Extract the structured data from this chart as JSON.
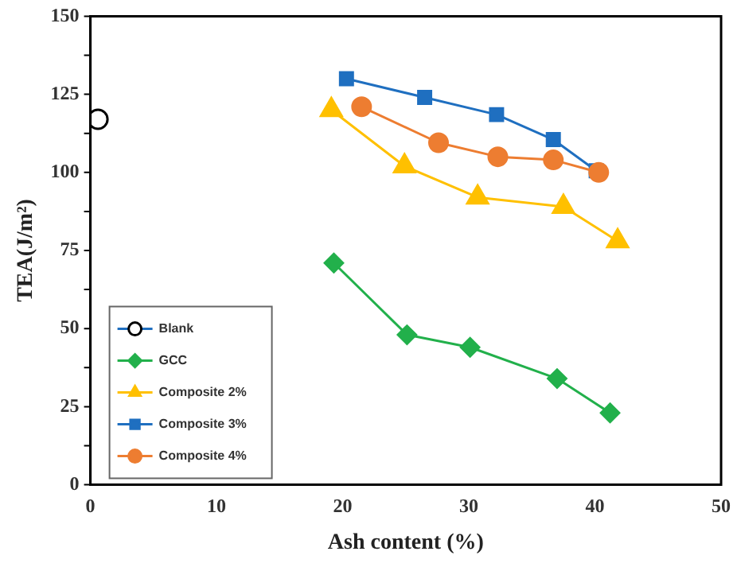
{
  "chart_data": {
    "type": "line",
    "xlabel": "Ash content (%)",
    "ylabel": "TEA(J/m²)",
    "xlim": [
      0,
      50
    ],
    "xticks": [
      0,
      10,
      20,
      30,
      40,
      50
    ],
    "ylim": [
      0,
      150
    ],
    "yticks": [
      0,
      {
        "value": 12.5,
        "label": null
      },
      25,
      {
        "value": 37.5,
        "label": null
      },
      50,
      {
        "value": 62.5,
        "label": null
      },
      75,
      {
        "value": 87.5,
        "label": null
      },
      100,
      {
        "value": 112.5,
        "label": null
      },
      125,
      {
        "value": 137.5,
        "label": null
      },
      150
    ],
    "grid": false,
    "legend": "bottom left",
    "line_style": "solid",
    "series": [
      {
        "name": "Blank",
        "color": "#000000",
        "marker": "circle",
        "x": [
          0.6
        ],
        "values": [
          117
        ]
      },
      {
        "name": "GCC",
        "color": "#22b04b",
        "marker": "diamond",
        "x": [
          19.3,
          25.1,
          30.1,
          37.0,
          41.2
        ],
        "values": [
          71,
          48,
          44,
          34,
          23
        ]
      },
      {
        "name": "Composite 2%",
        "color": "#ffc000",
        "marker": "triangle",
        "x": [
          19.1,
          24.9,
          30.7,
          37.5,
          41.8
        ],
        "values": [
          120,
          102,
          92,
          89,
          78
        ]
      },
      {
        "name": "Composite 3%",
        "color": "#1f6fc0",
        "marker": "square",
        "x": [
          20.3,
          26.5,
          32.2,
          36.7,
          40.1
        ],
        "values": [
          130,
          124,
          118.5,
          110.5,
          100.5
        ]
      },
      {
        "name": "Composite 4%",
        "color": "#ed7d31",
        "marker": "circle",
        "x": [
          21.5,
          27.6,
          32.3,
          36.7,
          40.3
        ],
        "values": [
          121,
          109.5,
          105,
          104,
          100
        ]
      }
    ]
  }
}
